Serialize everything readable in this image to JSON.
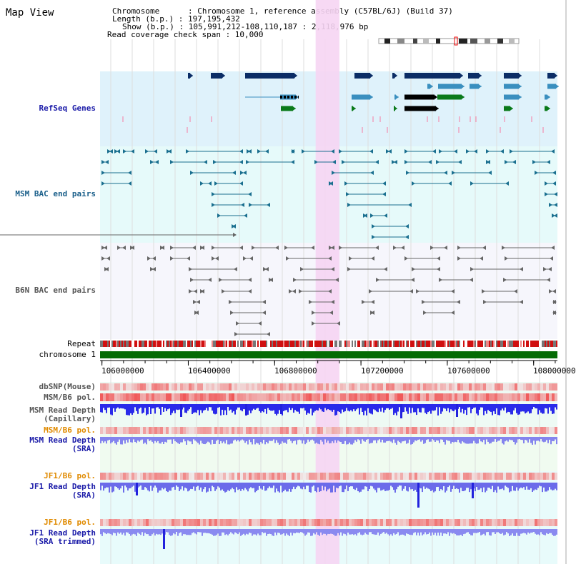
{
  "page": {
    "title": "Map View"
  },
  "info": {
    "chromosome_line": "Chromosome      : Chromosome 1, reference assembly (C57BL/6J) (Build 37)",
    "length_line": "Length (b.p.) : 197,195,432",
    "show_line": "Show (b.p.) : 105,991,212-108,110,187 : 2,118,976 bp",
    "coverage_line": "Read coverage check span : 10,000"
  },
  "tracks": {
    "refseq": "RefSeq Genes",
    "msm_bac": "MSM BAC end pairs",
    "b6n_bac": "B6N BAC end pairs",
    "repeat": "Repeat",
    "chromosome": "chromosome 1",
    "dbsnp": "dbSNP(Mouse)",
    "msm_b6_pol_1": "MSM/B6 pol.",
    "msm_depth_cap_1": "MSM Read Depth",
    "msm_depth_cap_2": "(Capillary)",
    "msm_b6_pol_2": "MSM/B6 pol.",
    "msm_depth_sra_1": "MSM Read Depth",
    "msm_depth_sra_2": "(SRA)",
    "jf1_b6_pol_1": "JF1/B6 pol.",
    "jf1_depth_sra_1": "JF1 Read Depth",
    "jf1_depth_sra_2": "(SRA)",
    "jf1_b6_pol_2": "JF1/B6 pol.",
    "jf1_depth_trim_1": "JF1 Read Depth",
    "jf1_depth_trim_2": "(SRA trimmed)"
  },
  "axis": {
    "ticks": [
      "106000000",
      "106400000",
      "106800000",
      "107200000",
      "107600000",
      "108000000"
    ],
    "tick_values": [
      106000000,
      106400000,
      106800000,
      107200000,
      107600000,
      108000000
    ],
    "range": [
      105991212,
      108110187
    ]
  },
  "highlight": {
    "start": 106990000,
    "end": 107100000
  },
  "colors": {
    "refseq_bg": "#dff2fb",
    "msm_bg": "#e6fafa",
    "b6n_bg": "#f6f6fc",
    "highlight": "#f6d5f3",
    "gene_dark": "#0b2d66",
    "gene_mid": "#3a8fbf",
    "gene_green": "#0a7a1a",
    "msm_pair": "#1a6f8f",
    "b6n_pair": "#666666",
    "chromosome": "#056b05",
    "depth_blue": "#2020e0",
    "depth_light": "#7a7aee"
  }
}
